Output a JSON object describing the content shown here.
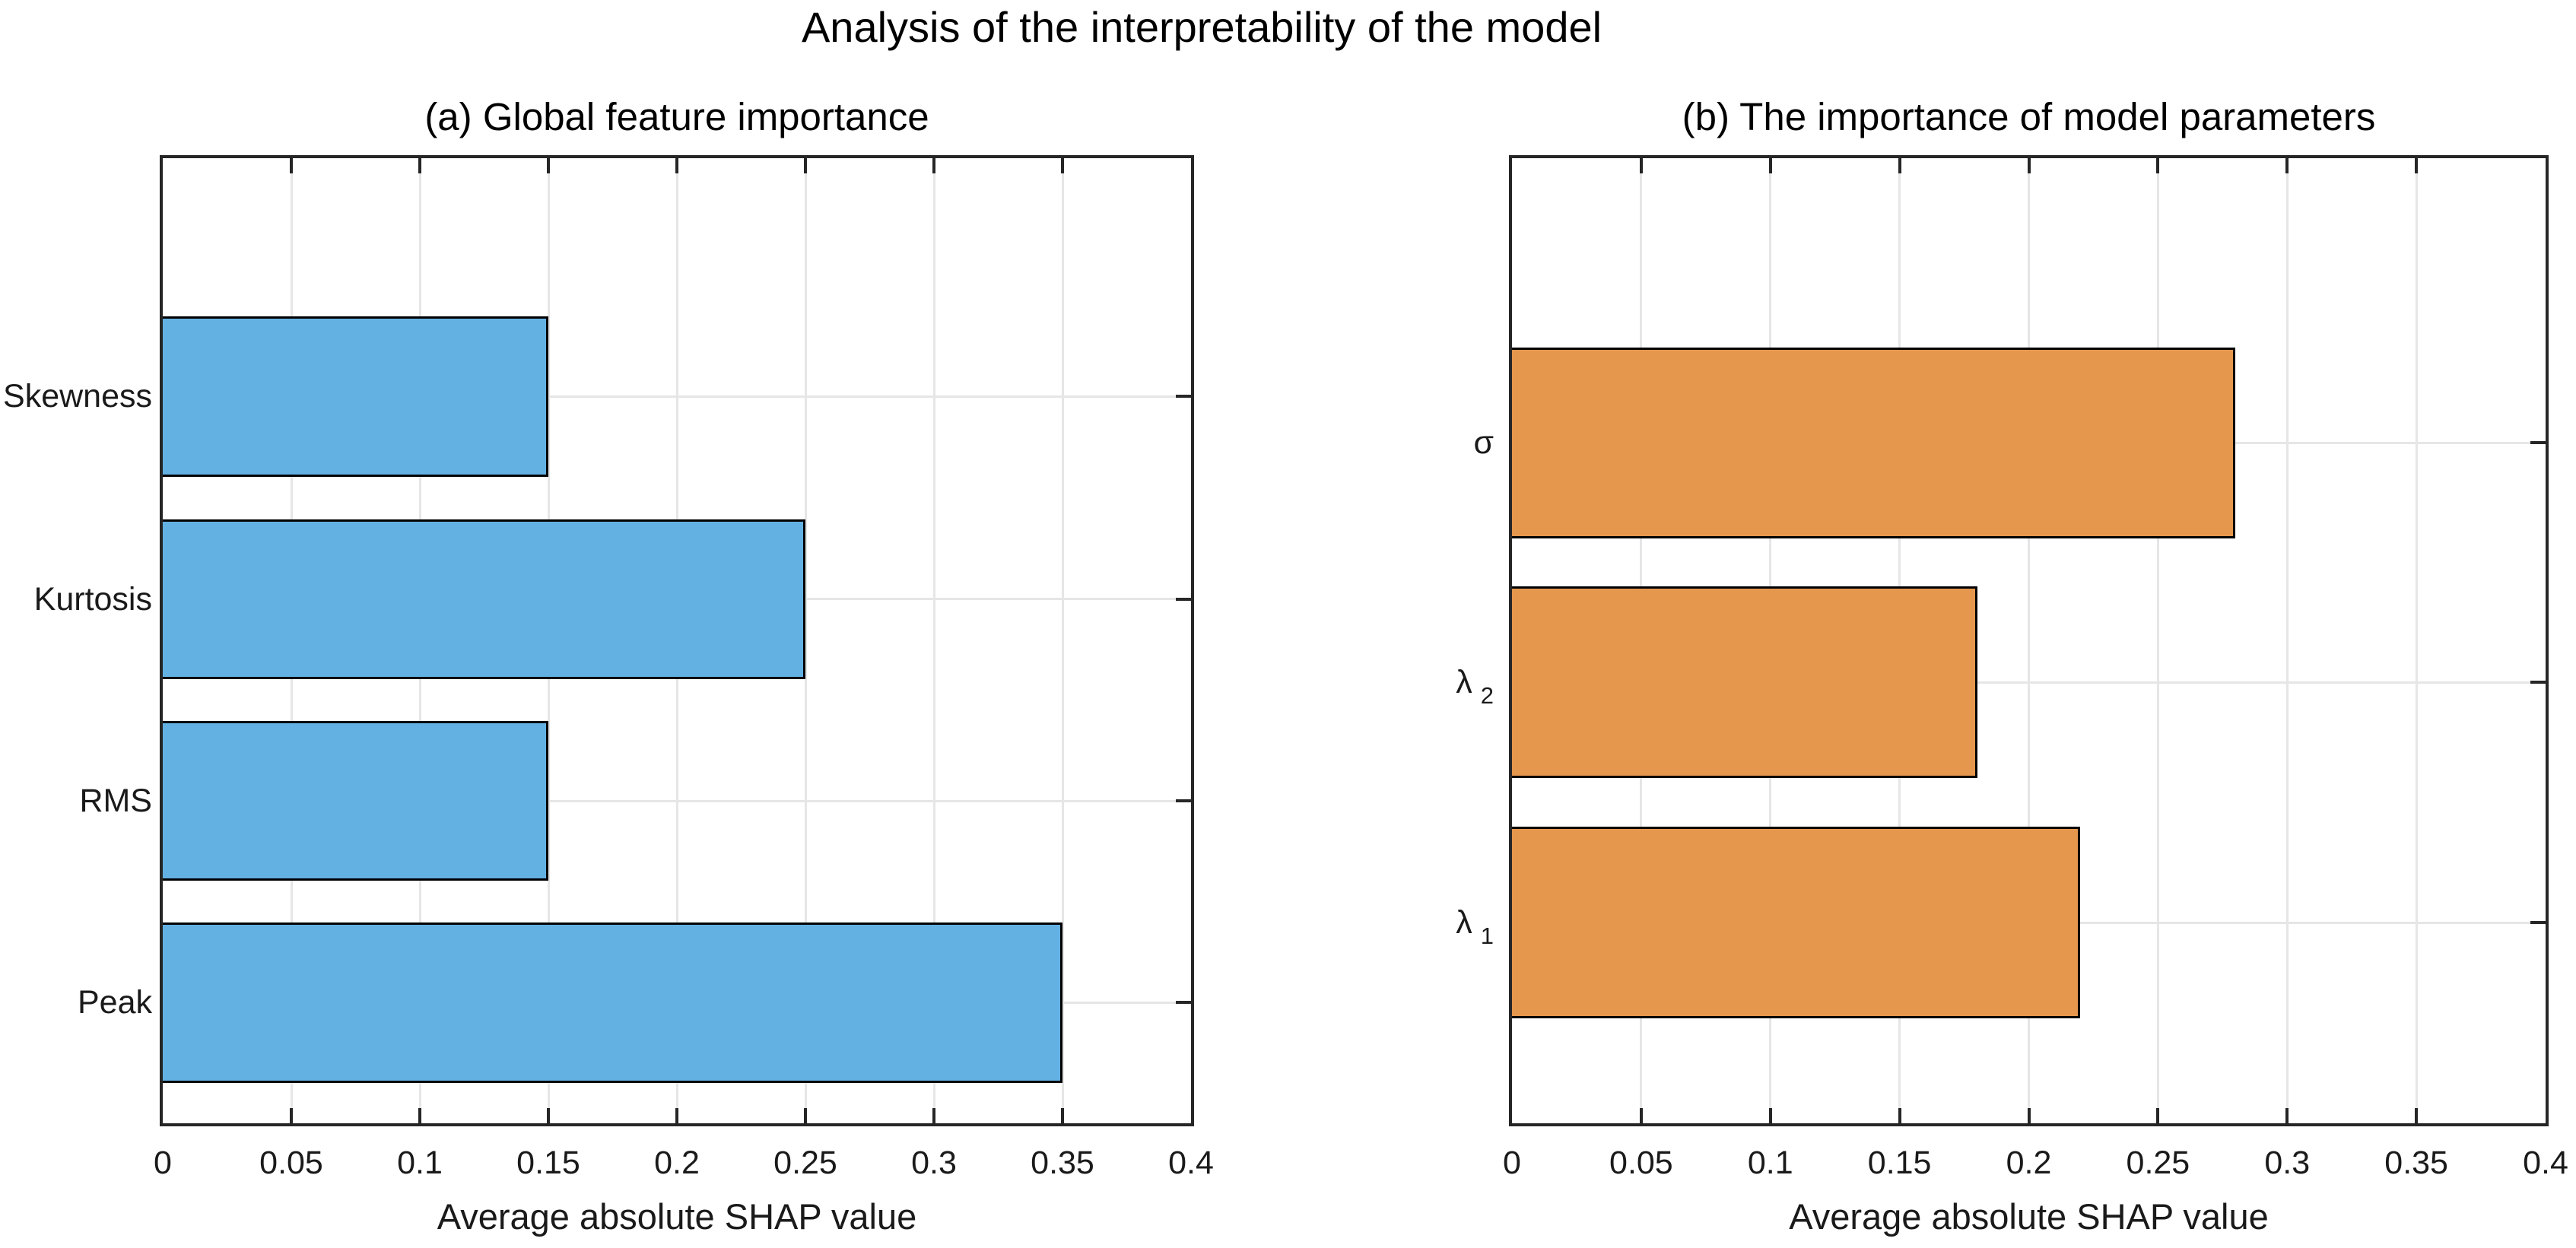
{
  "figure_title": "Analysis of the interpretability of the model",
  "colors": {
    "axis": "#262626",
    "grid": "#E6E6E6",
    "bar_edge": "#000000",
    "blue_bar": "#63B1E3",
    "orange_bar": "#E5974D",
    "text": "#1a1a1a"
  },
  "chart_data": [
    {
      "type": "bar",
      "orientation": "horizontal",
      "title": "(a) Global feature importance",
      "xlabel": "Average absolute SHAP value",
      "ylabel": "",
      "categories": [
        "Skewness",
        "Kurtosis",
        "RMS",
        "Peak"
      ],
      "values": [
        0.15,
        0.25,
        0.15,
        0.35
      ],
      "bar_color": "#63B1E3",
      "bar_edge_color": "#000000",
      "xlim": [
        0,
        0.4
      ],
      "xticks": [
        0,
        0.05,
        0.1,
        0.15,
        0.2,
        0.25,
        0.3,
        0.35,
        0.4
      ],
      "xtick_labels": [
        "0",
        "0.05",
        "0.1",
        "0.15",
        "0.2",
        "0.25",
        "0.3",
        "0.35",
        "0.4"
      ],
      "grid": true,
      "legend": null
    },
    {
      "type": "bar",
      "orientation": "horizontal",
      "title": "(b) The importance of model parameters",
      "xlabel": "Average absolute SHAP value",
      "ylabel": "",
      "categories": [
        {
          "text": "σ"
        },
        {
          "text": "λ",
          "sub": "2"
        },
        {
          "text": "λ",
          "sub": "1"
        }
      ],
      "values": [
        0.28,
        0.18,
        0.22
      ],
      "bar_color": "#E5974D",
      "bar_edge_color": "#000000",
      "xlim": [
        0,
        0.4
      ],
      "xticks": [
        0,
        0.05,
        0.1,
        0.15,
        0.2,
        0.25,
        0.3,
        0.35,
        0.4
      ],
      "xtick_labels": [
        "0",
        "0.05",
        "0.1",
        "0.15",
        "0.2",
        "0.25",
        "0.3",
        "0.35",
        "0.4"
      ],
      "grid": true,
      "legend": null
    }
  ]
}
